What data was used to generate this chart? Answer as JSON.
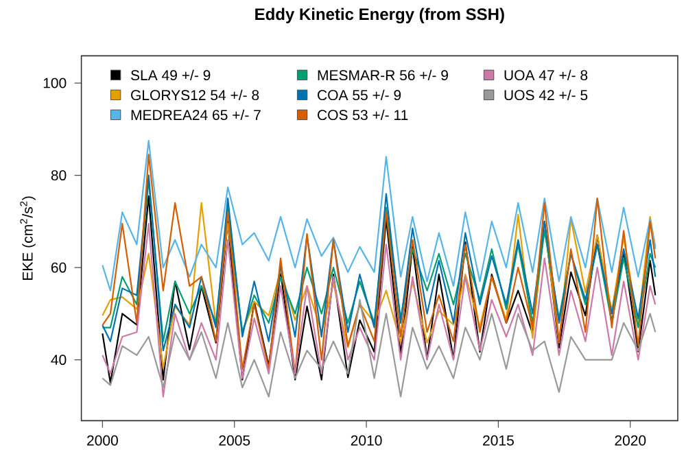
{
  "chart_data": {
    "type": "line",
    "title": "Eddy Kinetic Energy (from SSH)",
    "ylabel": "EKE (cm$^{2}$/s$^{2}$)",
    "x": [
      2000.0,
      2000.3,
      2000.75,
      2001.3,
      2001.75,
      2002.3,
      2002.75,
      2003.3,
      2003.75,
      2004.3,
      2004.75,
      2005.3,
      2005.75,
      2006.3,
      2006.75,
      2007.3,
      2007.75,
      2008.3,
      2008.75,
      2009.3,
      2009.75,
      2010.3,
      2010.75,
      2011.3,
      2011.75,
      2012.3,
      2012.75,
      2013.3,
      2013.75,
      2014.3,
      2014.75,
      2015.3,
      2015.75,
      2016.3,
      2016.75,
      2017.3,
      2017.75,
      2018.3,
      2018.75,
      2019.3,
      2019.75,
      2020.3,
      2020.75,
      2020.95
    ],
    "series": [
      {
        "name": "SLA 49 +/- 9",
        "color": "#000000",
        "values": [
          45.7,
          35,
          50,
          47.6,
          75.5,
          35.7,
          57,
          42.2,
          56,
          43.7,
          70,
          35.7,
          52.6,
          38.7,
          59,
          35.7,
          51.6,
          35.7,
          58.5,
          36.2,
          48.6,
          41.7,
          70.5,
          41.2,
          64.5,
          40.2,
          58.5,
          40.2,
          65.5,
          41.7,
          58.5,
          48,
          55,
          45.7,
          70,
          42.6,
          59,
          49.6,
          67,
          48.1,
          63.5,
          41.8,
          61.5,
          54
        ]
      },
      {
        "name": "GLORYS12 54 +/- 8",
        "color": "#e69f00",
        "values": [
          49.6,
          53,
          53.6,
          51,
          63,
          38.2,
          51.6,
          47.6,
          74,
          47.6,
          69.5,
          46,
          52.6,
          49.6,
          59.5,
          48.6,
          56,
          46,
          56.6,
          42.7,
          52.1,
          48.1,
          55,
          43.7,
          57,
          43.7,
          50.6,
          47.6,
          58.5,
          47.1,
          58,
          48.6,
          71.5,
          44.7,
          69.5,
          43.7,
          70.5,
          54.6,
          67,
          50.6,
          66.5,
          47.6,
          71,
          64.5
        ]
      },
      {
        "name": "MEDREA24 65 +/- 7",
        "color": "#56b4e9",
        "values": [
          60.5,
          55,
          72,
          65,
          87.5,
          60,
          66,
          58,
          65,
          60,
          77.4,
          65,
          67.5,
          61.5,
          71,
          60,
          70.5,
          62.5,
          66.5,
          59,
          64.5,
          59,
          84,
          58,
          71,
          57,
          67.5,
          56,
          72,
          57,
          70,
          60,
          74,
          59,
          75,
          57,
          71,
          60,
          75,
          59,
          73,
          58,
          70.5,
          64
        ]
      },
      {
        "name": "MESMAR-R 56 +/- 9",
        "color": "#009e73",
        "values": [
          47,
          47,
          58,
          52,
          79,
          44,
          57,
          50,
          56,
          48,
          73,
          46,
          54,
          48,
          58,
          50,
          60,
          50,
          60,
          48,
          57,
          48,
          73,
          49,
          64,
          55,
          63,
          52,
          63,
          53,
          64,
          51,
          65,
          48,
          68,
          49,
          63,
          52,
          65,
          48,
          62,
          47,
          63,
          60
        ]
      },
      {
        "name": "COA 55 +/- 9",
        "color": "#0072b2",
        "values": [
          47.5,
          44,
          55.5,
          54,
          80,
          42,
          52,
          47,
          58,
          47,
          75,
          45,
          57,
          44,
          60.5,
          45,
          67,
          45,
          66,
          46,
          58.5,
          47,
          76,
          48,
          68.5,
          50,
          61.5,
          48,
          67.5,
          52,
          62.5,
          52,
          66,
          50,
          70,
          48,
          63,
          53,
          65,
          50,
          64,
          49,
          66,
          58
        ]
      },
      {
        "name": "COS 53 +/- 11",
        "color": "#d55e00",
        "values": [
          47.5,
          50,
          69.5,
          48,
          84.5,
          55,
          74,
          56,
          58,
          44,
          72,
          38,
          52,
          38,
          62,
          37,
          67.3,
          40,
          66,
          43,
          52,
          44,
          72,
          45,
          66,
          46,
          54,
          44,
          65,
          46,
          58,
          48,
          60,
          47,
          74,
          44,
          64,
          46,
          75,
          47,
          68,
          43,
          70,
          62
        ]
      },
      {
        "name": "UOA 47 +/- 8",
        "color": "#cc79a7",
        "values": [
          41,
          37,
          45,
          46,
          69.5,
          32,
          50,
          40,
          48,
          40,
          66,
          36,
          49,
          37,
          56,
          37,
          56,
          37,
          58,
          40,
          47,
          40,
          65,
          40,
          58,
          40,
          52,
          40,
          58,
          42,
          53,
          45,
          52,
          41,
          62,
          41,
          55,
          44,
          60,
          41,
          57,
          40,
          56,
          52
        ]
      },
      {
        "name": "UOS 42 +/- 5",
        "color": "#999999",
        "values": [
          36,
          34.5,
          43,
          41,
          45,
          34,
          46,
          40,
          46,
          36,
          48,
          34,
          40,
          32,
          46,
          36,
          42,
          38,
          44,
          37,
          53,
          36,
          50,
          32,
          47,
          38,
          43,
          36,
          47,
          40,
          50,
          38,
          50,
          42,
          44,
          33,
          45,
          40,
          40,
          40,
          48,
          42,
          50,
          46
        ]
      }
    ],
    "xlim": [
      1999.2,
      2021.8
    ],
    "ylim": [
      26.8,
      105.9
    ],
    "xticks": [
      2000,
      2005,
      2010,
      2015,
      2020
    ],
    "yticks": [
      40,
      60,
      80,
      100
    ],
    "legend": "top left"
  }
}
